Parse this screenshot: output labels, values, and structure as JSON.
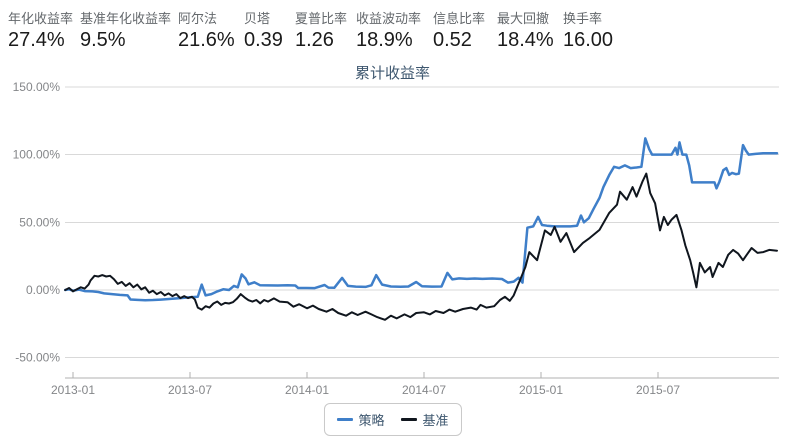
{
  "stats": [
    {
      "label": "年化收益率",
      "value": "27.4%"
    },
    {
      "label": "基准年化收益率",
      "value": "9.5%"
    },
    {
      "label": "阿尔法",
      "value": "21.6%"
    },
    {
      "label": "贝塔",
      "value": "0.39"
    },
    {
      "label": "夏普比率",
      "value": "1.26"
    },
    {
      "label": "收益波动率",
      "value": "18.9%"
    },
    {
      "label": "信息比率",
      "value": "0.52"
    },
    {
      "label": "最大回撤",
      "value": "18.4%"
    },
    {
      "label": "换手率",
      "value": "16.00"
    }
  ],
  "chart_data": {
    "type": "line",
    "title": "累计收益率",
    "xlabel": "",
    "ylabel": "",
    "x_unit": "months since 2013-01",
    "xlim": [
      -0.4,
      36.2
    ],
    "ylim": [
      -65,
      150
    ],
    "grid": true,
    "legend_position": "bottom",
    "xticks": [
      {
        "m": 0,
        "label": "2013-01"
      },
      {
        "m": 6,
        "label": "2013-07"
      },
      {
        "m": 12,
        "label": "2014-01"
      },
      {
        "m": 18,
        "label": "2014-07"
      },
      {
        "m": 24,
        "label": "2015-01"
      },
      {
        "m": 30,
        "label": "2015-07"
      }
    ],
    "yticks": [
      {
        "v": 150,
        "label": "150.00%"
      },
      {
        "v": 100,
        "label": "100.00%"
      },
      {
        "v": 50,
        "label": "50.00%"
      },
      {
        "v": 0,
        "label": "0.00%"
      },
      {
        "v": -50,
        "label": "-50.00%"
      }
    ],
    "series": [
      {
        "name": "策略",
        "color": "#3f7fc9",
        "points": [
          [
            -0.4,
            0
          ],
          [
            -0.2,
            0.5
          ],
          [
            0,
            -0.5
          ],
          [
            0.3,
            0.3
          ],
          [
            0.6,
            -0.8
          ],
          [
            1,
            -1
          ],
          [
            1.3,
            -1.5
          ],
          [
            1.6,
            -2.5
          ],
          [
            2,
            -3
          ],
          [
            2.4,
            -3.6
          ],
          [
            2.8,
            -4
          ],
          [
            2.95,
            -7
          ],
          [
            3.3,
            -7.3
          ],
          [
            3.7,
            -7.5
          ],
          [
            4.1,
            -7.4
          ],
          [
            4.5,
            -7.1
          ],
          [
            5,
            -6.6
          ],
          [
            5.5,
            -6
          ],
          [
            6,
            -5.3
          ],
          [
            6.4,
            -5
          ],
          [
            6.6,
            4
          ],
          [
            6.8,
            -4
          ],
          [
            7.1,
            -3
          ],
          [
            7.4,
            -1
          ],
          [
            7.7,
            0.5
          ],
          [
            8,
            0
          ],
          [
            8.25,
            3
          ],
          [
            8.45,
            2
          ],
          [
            8.65,
            11.5
          ],
          [
            8.85,
            8.5
          ],
          [
            9,
            4.2
          ],
          [
            9.3,
            5.7
          ],
          [
            9.6,
            3.5
          ],
          [
            10,
            3.4
          ],
          [
            10.5,
            3.3
          ],
          [
            11,
            3.5
          ],
          [
            11.4,
            3.3
          ],
          [
            11.55,
            1.5
          ],
          [
            12,
            1.5
          ],
          [
            12.4,
            1.4
          ],
          [
            12.9,
            3.7
          ],
          [
            13.1,
            1.8
          ],
          [
            13.4,
            1.6
          ],
          [
            13.8,
            8.9
          ],
          [
            14.1,
            3
          ],
          [
            14.5,
            2.5
          ],
          [
            15,
            2.3
          ],
          [
            15.3,
            3.5
          ],
          [
            15.55,
            11
          ],
          [
            15.85,
            4
          ],
          [
            16.3,
            2.6
          ],
          [
            16.8,
            2.4
          ],
          [
            17.2,
            2.6
          ],
          [
            17.6,
            5.9
          ],
          [
            17.9,
            2.8
          ],
          [
            18.4,
            2.5
          ],
          [
            18.9,
            2.6
          ],
          [
            19.2,
            12.6
          ],
          [
            19.45,
            7.8
          ],
          [
            19.8,
            8.6
          ],
          [
            20.2,
            8.2
          ],
          [
            20.6,
            8.5
          ],
          [
            21,
            8.2
          ],
          [
            21.5,
            8.5
          ],
          [
            22,
            8.1
          ],
          [
            22.3,
            5.5
          ],
          [
            22.6,
            6.2
          ],
          [
            22.85,
            9
          ],
          [
            23.05,
            5.5
          ],
          [
            23.3,
            46
          ],
          [
            23.6,
            47
          ],
          [
            23.85,
            54
          ],
          [
            24.05,
            48
          ],
          [
            24.3,
            47.5
          ],
          [
            24.7,
            47
          ],
          [
            25.1,
            47
          ],
          [
            25.5,
            47
          ],
          [
            25.85,
            47.5
          ],
          [
            26.05,
            55
          ],
          [
            26.2,
            50
          ],
          [
            26.45,
            53
          ],
          [
            26.7,
            60
          ],
          [
            27,
            68
          ],
          [
            27.2,
            76
          ],
          [
            27.5,
            85
          ],
          [
            27.75,
            91
          ],
          [
            28,
            90
          ],
          [
            28.3,
            92
          ],
          [
            28.6,
            90
          ],
          [
            28.9,
            90.5
          ],
          [
            29.15,
            91
          ],
          [
            29.35,
            112
          ],
          [
            29.55,
            104
          ],
          [
            29.7,
            100
          ],
          [
            30.1,
            100
          ],
          [
            30.5,
            100
          ],
          [
            30.7,
            100
          ],
          [
            30.9,
            105
          ],
          [
            31,
            100
          ],
          [
            31.1,
            109
          ],
          [
            31.25,
            100
          ],
          [
            31.45,
            100
          ],
          [
            31.6,
            92
          ],
          [
            31.75,
            79.5
          ],
          [
            32.1,
            79.5
          ],
          [
            32.5,
            79.5
          ],
          [
            32.9,
            79.5
          ],
          [
            33,
            75
          ],
          [
            33.15,
            80
          ],
          [
            33.35,
            88.5
          ],
          [
            33.5,
            90
          ],
          [
            33.65,
            85
          ],
          [
            33.8,
            86.5
          ],
          [
            34,
            85.5
          ],
          [
            34.15,
            86
          ],
          [
            34.36,
            107
          ],
          [
            34.5,
            103
          ],
          [
            34.65,
            100
          ],
          [
            35,
            100.5
          ],
          [
            35.4,
            101
          ],
          [
            35.7,
            101
          ],
          [
            36.1,
            101
          ]
        ]
      },
      {
        "name": "基准",
        "color": "#10161e",
        "points": [
          [
            -0.4,
            0
          ],
          [
            -0.2,
            1.5
          ],
          [
            0,
            -1
          ],
          [
            0.2,
            0.5
          ],
          [
            0.4,
            2
          ],
          [
            0.6,
            1
          ],
          [
            0.8,
            4
          ],
          [
            0.9,
            7
          ],
          [
            1.1,
            10.5
          ],
          [
            1.3,
            10
          ],
          [
            1.5,
            11
          ],
          [
            1.7,
            10
          ],
          [
            1.9,
            10.5
          ],
          [
            2.1,
            8
          ],
          [
            2.3,
            4.5
          ],
          [
            2.5,
            6
          ],
          [
            2.7,
            3
          ],
          [
            2.9,
            5
          ],
          [
            3.1,
            2
          ],
          [
            3.3,
            4
          ],
          [
            3.5,
            0.5
          ],
          [
            3.7,
            2
          ],
          [
            3.9,
            -2
          ],
          [
            4.1,
            -0.5
          ],
          [
            4.3,
            -3
          ],
          [
            4.5,
            -1.5
          ],
          [
            4.7,
            -4
          ],
          [
            4.9,
            -2.5
          ],
          [
            5.1,
            -4.5
          ],
          [
            5.3,
            -3
          ],
          [
            5.5,
            -6
          ],
          [
            5.7,
            -4.5
          ],
          [
            5.9,
            -6
          ],
          [
            6.1,
            -5
          ],
          [
            6.25,
            -7
          ],
          [
            6.4,
            -13
          ],
          [
            6.6,
            -14.5
          ],
          [
            6.8,
            -12
          ],
          [
            7,
            -13
          ],
          [
            7.2,
            -10
          ],
          [
            7.4,
            -8.5
          ],
          [
            7.6,
            -11
          ],
          [
            7.8,
            -9.5
          ],
          [
            8,
            -10
          ],
          [
            8.2,
            -9
          ],
          [
            8.4,
            -6.5
          ],
          [
            8.6,
            -3
          ],
          [
            8.8,
            -5.5
          ],
          [
            9,
            -7.5
          ],
          [
            9.2,
            -8.6
          ],
          [
            9.4,
            -7.4
          ],
          [
            9.6,
            -9.8
          ],
          [
            9.8,
            -7.4
          ],
          [
            10,
            -8.6
          ],
          [
            10.3,
            -6.2
          ],
          [
            10.6,
            -8.6
          ],
          [
            11,
            -9
          ],
          [
            11.3,
            -12.3
          ],
          [
            11.6,
            -10.5
          ],
          [
            12,
            -13.5
          ],
          [
            12.3,
            -11.5
          ],
          [
            12.6,
            -14
          ],
          [
            13,
            -16
          ],
          [
            13.3,
            -14
          ],
          [
            13.6,
            -17
          ],
          [
            14,
            -19
          ],
          [
            14.3,
            -16.5
          ],
          [
            14.6,
            -18.5
          ],
          [
            15,
            -16
          ],
          [
            15.3,
            -18
          ],
          [
            15.6,
            -20
          ],
          [
            16,
            -22
          ],
          [
            16.3,
            -19
          ],
          [
            16.6,
            -21
          ],
          [
            17,
            -18
          ],
          [
            17.3,
            -20
          ],
          [
            17.6,
            -17
          ],
          [
            18,
            -16.5
          ],
          [
            18.3,
            -18
          ],
          [
            18.6,
            -15.5
          ],
          [
            19,
            -17
          ],
          [
            19.3,
            -14.5
          ],
          [
            19.6,
            -16
          ],
          [
            20,
            -14
          ],
          [
            20.4,
            -13
          ],
          [
            20.7,
            -14.5
          ],
          [
            20.9,
            -11
          ],
          [
            21.2,
            -13
          ],
          [
            21.6,
            -12
          ],
          [
            21.9,
            -7.4
          ],
          [
            22.15,
            -5
          ],
          [
            22.4,
            -8
          ],
          [
            22.6,
            -4
          ],
          [
            22.8,
            3
          ],
          [
            23,
            10
          ],
          [
            23.2,
            17
          ],
          [
            23.4,
            28
          ],
          [
            23.8,
            22
          ],
          [
            24.2,
            44
          ],
          [
            24.5,
            40.7
          ],
          [
            24.7,
            46.7
          ],
          [
            25,
            35.6
          ],
          [
            25.3,
            42
          ],
          [
            25.7,
            28
          ],
          [
            26.15,
            34.8
          ],
          [
            26.5,
            38.5
          ],
          [
            27,
            44.4
          ],
          [
            27.5,
            57
          ],
          [
            27.9,
            63
          ],
          [
            28.05,
            72.6
          ],
          [
            28.4,
            66.7
          ],
          [
            28.7,
            76
          ],
          [
            28.9,
            69
          ],
          [
            29.2,
            80
          ],
          [
            29.4,
            86
          ],
          [
            29.6,
            71.6
          ],
          [
            29.85,
            64
          ],
          [
            30.1,
            44
          ],
          [
            30.3,
            54
          ],
          [
            30.5,
            48
          ],
          [
            30.7,
            52
          ],
          [
            30.95,
            55.5
          ],
          [
            31.2,
            44.4
          ],
          [
            31.4,
            33
          ],
          [
            31.65,
            22
          ],
          [
            31.8,
            13
          ],
          [
            31.97,
            2
          ],
          [
            32.15,
            20
          ],
          [
            32.4,
            13
          ],
          [
            32.67,
            17
          ],
          [
            32.8,
            9.6
          ],
          [
            33.1,
            20
          ],
          [
            33.33,
            17
          ],
          [
            33.6,
            26
          ],
          [
            33.85,
            29.6
          ],
          [
            34.1,
            27
          ],
          [
            34.36,
            22
          ],
          [
            34.6,
            27
          ],
          [
            34.8,
            31
          ],
          [
            35.1,
            27.4
          ],
          [
            35.4,
            28
          ],
          [
            35.7,
            29.6
          ],
          [
            36.1,
            29
          ]
        ]
      }
    ]
  }
}
